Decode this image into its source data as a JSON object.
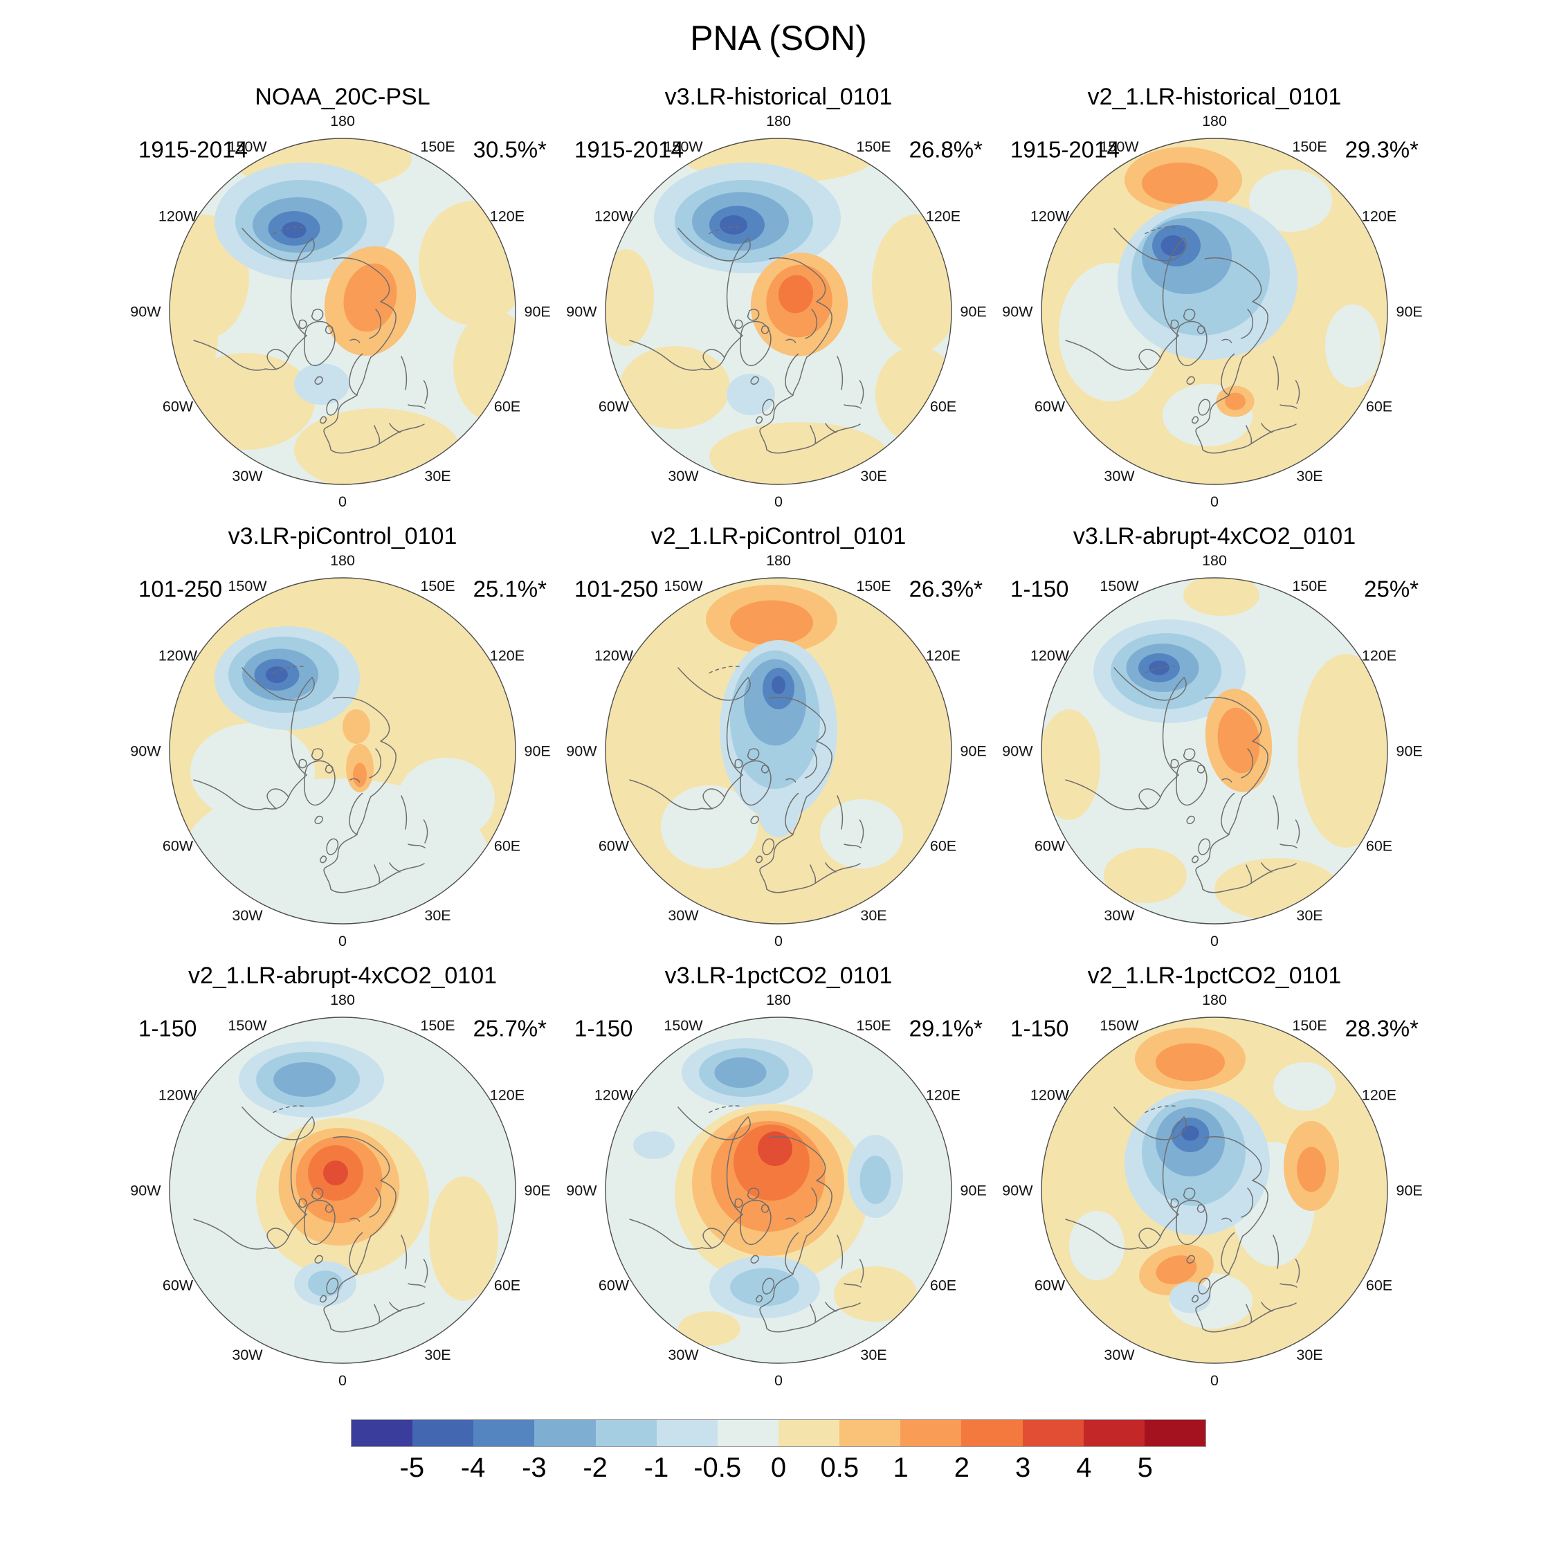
{
  "chart_data": {
    "type": "contour-map-grid",
    "title": "PNA (SON)",
    "panels": [
      {
        "title": "NOAA_20C-PSL",
        "period": "1915-2014",
        "variance": "30.5%*"
      },
      {
        "title": "v3.LR-historical_0101",
        "period": "1915-2014",
        "variance": "26.8%*"
      },
      {
        "title": "v2_1.LR-historical_0101",
        "period": "1915-2014",
        "variance": "29.3%*"
      },
      {
        "title": "v3.LR-piControl_0101",
        "period": "101-250",
        "variance": "25.1%*"
      },
      {
        "title": "v2_1.LR-piControl_0101",
        "period": "101-250",
        "variance": "26.3%*"
      },
      {
        "title": "v3.LR-abrupt-4xCO2_0101",
        "period": "1-150",
        "variance": "25%*"
      },
      {
        "title": "v2_1.LR-abrupt-4xCO2_0101",
        "period": "1-150",
        "variance": "25.7%*"
      },
      {
        "title": "v3.LR-1pctCO2_0101",
        "period": "1-150",
        "variance": "29.1%*"
      },
      {
        "title": "v2_1.LR-1pctCO2_0101",
        "period": "1-150",
        "variance": "28.3%*"
      }
    ],
    "longitude_labels": [
      {
        "text": "180",
        "deg": 0
      },
      {
        "text": "150E",
        "deg": 30
      },
      {
        "text": "120E",
        "deg": 60
      },
      {
        "text": "90E",
        "deg": 90
      },
      {
        "text": "60E",
        "deg": 120
      },
      {
        "text": "30E",
        "deg": 150
      },
      {
        "text": "0",
        "deg": 180
      },
      {
        "text": "30W",
        "deg": 210
      },
      {
        "text": "60W",
        "deg": 240
      },
      {
        "text": "90W",
        "deg": 270
      },
      {
        "text": "120W",
        "deg": 300
      },
      {
        "text": "150W",
        "deg": 330
      }
    ],
    "colorbar": {
      "ticks": [
        "-5",
        "-4",
        "-3",
        "-2",
        "-1",
        "-0.5",
        "0",
        "0.5",
        "1",
        "2",
        "3",
        "4",
        "5"
      ],
      "colors": [
        "#3A3D9B",
        "#4467B1",
        "#5585C0",
        "#7FAED3",
        "#A5CEE3",
        "#C8E1ED",
        "#E4EFEC",
        "#F5E3AC",
        "#FAC178",
        "#F99C55",
        "#F4793F",
        "#E14E34",
        "#C32727",
        "#A5121F"
      ]
    }
  },
  "palette": {
    "b5": "#3A3D9B",
    "b4": "#4467B1",
    "b3": "#5585C0",
    "b2": "#7FAED3",
    "b1": "#A5CEE3",
    "b05": "#C8E1ED",
    "b0": "#E4EFEC",
    "y0": "#F5E3AC",
    "o05": "#FAC178",
    "o1": "#F99C55",
    "o2": "#F4793F",
    "o3": "#E14E34",
    "o4": "#C32727",
    "o5": "#A5121F"
  },
  "render": {
    "panels": [
      {
        "base": "#E4EFEC",
        "blobs": [
          [
            -6,
            -44,
            26,
            9,
            "y0",
            0
          ],
          [
            38,
            -14,
            16,
            18,
            "y0",
            0
          ],
          [
            44,
            16,
            12,
            16,
            "y0",
            0
          ],
          [
            -40,
            -10,
            13,
            18,
            "y0",
            0
          ],
          [
            -28,
            26,
            20,
            14,
            "y0",
            0
          ],
          [
            10,
            40,
            24,
            12,
            "y0",
            0
          ],
          [
            -44,
            8,
            8,
            12,
            "y0",
            0
          ],
          [
            -11,
            -26,
            26,
            17,
            "b05",
            0
          ],
          [
            -12,
            -26,
            19,
            12,
            "b1",
            0
          ],
          [
            -13,
            -25,
            13,
            8,
            "b2",
            0
          ],
          [
            -14,
            -24,
            7.5,
            5,
            "b3",
            0
          ],
          [
            -14,
            -23.5,
            3.5,
            2.4,
            "b4",
            0
          ],
          [
            8,
            -3,
            13,
            16,
            "o05",
            15
          ],
          [
            8,
            -4,
            7.5,
            10,
            "o1",
            15
          ],
          [
            -6,
            21,
            8,
            6,
            "b05",
            0
          ]
        ]
      },
      {
        "base": "#E4EFEC",
        "blobs": [
          [
            0,
            -45,
            28,
            8,
            "y0",
            0
          ],
          [
            40,
            -8,
            13,
            20,
            "y0",
            0
          ],
          [
            40,
            24,
            12,
            14,
            "y0",
            0
          ],
          [
            6,
            42,
            26,
            10,
            "y0",
            0
          ],
          [
            -30,
            22,
            16,
            12,
            "y0",
            0
          ],
          [
            -44,
            -4,
            8,
            14,
            "y0",
            0
          ],
          [
            -9,
            -27,
            27,
            16,
            "b05",
            0
          ],
          [
            -10,
            -26,
            20,
            12,
            "b1",
            0
          ],
          [
            -11,
            -26,
            14,
            8.5,
            "b2",
            0
          ],
          [
            -12,
            -25,
            8,
            5.5,
            "b3",
            0
          ],
          [
            -13,
            -25,
            4,
            2.8,
            "b4",
            0
          ],
          [
            6,
            -2,
            14,
            15,
            "o05",
            10
          ],
          [
            6,
            -3,
            9.5,
            10.5,
            "o1",
            10
          ],
          [
            5,
            -5,
            5,
            5.5,
            "o2",
            10
          ],
          [
            -8,
            24,
            7,
            6,
            "b05",
            0
          ]
        ]
      },
      {
        "base": "#F5E3AC",
        "blobs": [
          [
            -30,
            6,
            15,
            20,
            "b0",
            0
          ],
          [
            -2,
            30,
            13,
            9,
            "b0",
            0
          ],
          [
            22,
            -32,
            12,
            9,
            "b0",
            0
          ],
          [
            40,
            10,
            8,
            12,
            "b0",
            0
          ],
          [
            -9,
            -38,
            17,
            9.5,
            "o05",
            0
          ],
          [
            -10,
            -37,
            11,
            6,
            "o1",
            0
          ],
          [
            -2,
            -9,
            26,
            23,
            "b05",
            0
          ],
          [
            -4,
            -11,
            20,
            18,
            "b1",
            0
          ],
          [
            -8,
            -16,
            13,
            11,
            "b2",
            0
          ],
          [
            -11,
            -19,
            7,
            6,
            "b3",
            0
          ],
          [
            -12,
            -19,
            3.5,
            3,
            "b4",
            0
          ],
          [
            6,
            26,
            5.5,
            4.5,
            "o05",
            0
          ],
          [
            6,
            26,
            3,
            2.5,
            "o1",
            0
          ]
        ]
      },
      {
        "base": "#F5E3AC",
        "blobs": [
          [
            -2,
            30,
            44,
            22,
            "b0",
            0
          ],
          [
            -26,
            6,
            18,
            14,
            "b0",
            0
          ],
          [
            30,
            14,
            14,
            12,
            "b0",
            0
          ],
          [
            -16,
            -21,
            21,
            15,
            "b05",
            0
          ],
          [
            -17,
            -22,
            16,
            11,
            "b1",
            0
          ],
          [
            -18,
            -22,
            11,
            7.5,
            "b2",
            0
          ],
          [
            -19,
            -22,
            6.5,
            4.6,
            "b3",
            0
          ],
          [
            -19,
            -22,
            3.2,
            2.4,
            "b4",
            0
          ],
          [
            4,
            -7,
            4,
            5,
            "o05",
            0
          ],
          [
            5,
            5,
            4,
            7,
            "o05",
            0
          ],
          [
            5,
            7,
            2,
            3.5,
            "o1",
            0
          ]
        ]
      },
      {
        "base": "#F5E3AC",
        "blobs": [
          [
            -2,
            -38,
            19,
            10,
            "o05",
            0
          ],
          [
            -2,
            -37,
            12,
            6.5,
            "o1",
            0
          ],
          [
            -20,
            22,
            14,
            12,
            "b0",
            0
          ],
          [
            24,
            24,
            12,
            10,
            "b0",
            0
          ],
          [
            0,
            -6,
            17,
            26,
            "b05",
            0
          ],
          [
            0,
            17,
            6,
            8,
            "b05",
            0
          ],
          [
            -1,
            -9,
            13,
            20,
            "b1",
            0
          ],
          [
            -1,
            -14,
            9,
            12.5,
            "b2",
            0
          ],
          [
            0,
            -18,
            4.6,
            6,
            "b3",
            0
          ],
          [
            0,
            -19,
            2,
            2.6,
            "b4",
            0
          ]
        ]
      },
      {
        "base": "#E4EFEC",
        "blobs": [
          [
            2,
            -45,
            11,
            6,
            "y0",
            0
          ],
          [
            38,
            0,
            14,
            28,
            "y0",
            0
          ],
          [
            18,
            40,
            18,
            9,
            "y0",
            0
          ],
          [
            -42,
            4,
            9,
            16,
            "y0",
            0
          ],
          [
            -20,
            36,
            12,
            8,
            "y0",
            0
          ],
          [
            -13,
            -23,
            22,
            15,
            "b05",
            0
          ],
          [
            -14,
            -23,
            16,
            11,
            "b1",
            0
          ],
          [
            -15,
            -24,
            10.5,
            7,
            "b2",
            0
          ],
          [
            -16,
            -24,
            6,
            4.2,
            "b3",
            0
          ],
          [
            -16,
            -24,
            3,
            2.1,
            "b4",
            0
          ],
          [
            7,
            -3,
            9.5,
            15,
            "o05",
            -8
          ],
          [
            7,
            -3,
            6,
            9.5,
            "o1",
            -8
          ]
        ]
      },
      {
        "base": "#E4EFEC",
        "blobs": [
          [
            -9,
            -32,
            21,
            11,
            "b05",
            0
          ],
          [
            -10,
            -32,
            15,
            8,
            "b1",
            0
          ],
          [
            -11,
            -32,
            9,
            5,
            "b2",
            0
          ],
          [
            0,
            2,
            25,
            23,
            "y0",
            0
          ],
          [
            35,
            14,
            10,
            18,
            "y0",
            0
          ],
          [
            -1,
            -1,
            17.5,
            17,
            "o05",
            0
          ],
          [
            -1,
            -3,
            12.5,
            12.5,
            "o1",
            0
          ],
          [
            -2,
            -5,
            8,
            8,
            "o2",
            0
          ],
          [
            -2,
            -5,
            3.6,
            3.6,
            "o3",
            0
          ],
          [
            -5,
            27,
            9,
            6.5,
            "b05",
            0
          ],
          [
            -5,
            27,
            5,
            3.8,
            "b1",
            0
          ]
        ]
      },
      {
        "base": "#E4EFEC",
        "blobs": [
          [
            -9,
            -34,
            19,
            10,
            "b05",
            0
          ],
          [
            -10,
            -34,
            13,
            7,
            "b1",
            0
          ],
          [
            -11,
            -34,
            7.5,
            4.4,
            "b2",
            0
          ],
          [
            -2,
            1,
            28,
            26,
            "y0",
            0
          ],
          [
            28,
            30,
            12,
            8,
            "y0",
            0
          ],
          [
            -20,
            40,
            9,
            5,
            "y0",
            0
          ],
          [
            -3,
            -2,
            22,
            21,
            "o05",
            0
          ],
          [
            -3,
            -4,
            16.5,
            16,
            "o1",
            0
          ],
          [
            -2,
            -8,
            11,
            11,
            "o2",
            0
          ],
          [
            -1,
            -12,
            5,
            5,
            "o3",
            0
          ],
          [
            28,
            -4,
            8,
            12,
            "b05",
            0
          ],
          [
            28,
            -3,
            4.5,
            7,
            "b1",
            0
          ],
          [
            -4,
            28,
            16,
            9,
            "b05",
            0
          ],
          [
            -4,
            28,
            10,
            5.5,
            "b1",
            0
          ],
          [
            -36,
            -13,
            6,
            4,
            "b05",
            0
          ]
        ]
      },
      {
        "base": "#F5E3AC",
        "blobs": [
          [
            -7,
            -38,
            16,
            9,
            "o05",
            0
          ],
          [
            -7,
            -37,
            10,
            5.5,
            "o1",
            0
          ],
          [
            17,
            4,
            12,
            18,
            "b0",
            0
          ],
          [
            -1,
            32,
            12,
            8,
            "b0",
            0
          ],
          [
            26,
            -30,
            9,
            7,
            "b0",
            0
          ],
          [
            -34,
            16,
            8,
            10,
            "b0",
            0
          ],
          [
            -5,
            -8,
            21,
            21,
            "b05",
            0
          ],
          [
            -6,
            -11,
            15,
            15.5,
            "b1",
            0
          ],
          [
            -7,
            -14,
            10,
            10,
            "b2",
            0
          ],
          [
            -7,
            -16,
            5.5,
            5,
            "b3",
            0
          ],
          [
            -7,
            -16.5,
            2.6,
            2.2,
            "b4",
            0
          ],
          [
            28,
            -7,
            8,
            13,
            "o05",
            0
          ],
          [
            28,
            -6,
            4.2,
            6.5,
            "o1",
            0
          ],
          [
            -11,
            23,
            11,
            7,
            "o05",
            -15
          ],
          [
            -11,
            23,
            6,
            4,
            "o1",
            -15
          ],
          [
            -7,
            31,
            6,
            4.5,
            "b05",
            0
          ]
        ]
      }
    ]
  }
}
